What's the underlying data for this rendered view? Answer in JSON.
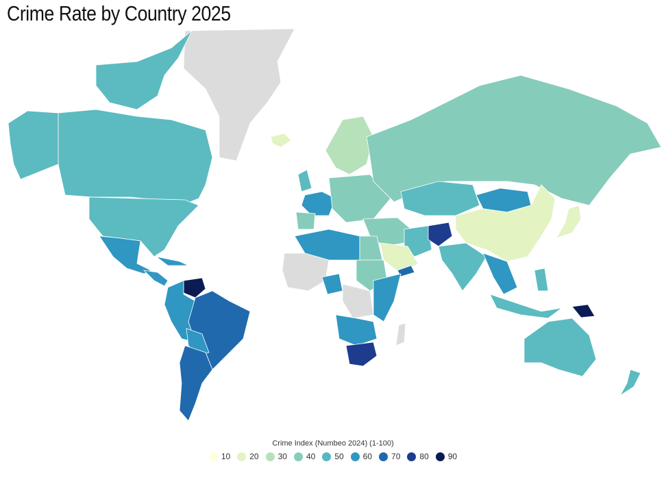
{
  "title": "Crime Rate by Country 2025",
  "legend": {
    "title": "Crime Index (Numbeo 2024) (1-100)",
    "items": [
      {
        "label": "10",
        "color": "#ffffd9"
      },
      {
        "label": "20",
        "color": "#e3f3c1"
      },
      {
        "label": "30",
        "color": "#b6e1b9"
      },
      {
        "label": "40",
        "color": "#86ccbb"
      },
      {
        "label": "50",
        "color": "#55b7c2"
      },
      {
        "label": "60",
        "color": "#2f97c2"
      },
      {
        "label": "70",
        "color": "#2069ad"
      },
      {
        "label": "80",
        "color": "#1e3c8d"
      },
      {
        "label": "90",
        "color": "#0b1c55"
      }
    ]
  },
  "colors": {
    "nodata": "#dcdcdc",
    "c20": "#e3f3c1",
    "c30": "#b6e1b9",
    "c40": "#86ccbb",
    "c50": "#5bbbc0",
    "c60": "#2f97c2",
    "c70": "#2069ad",
    "c80": "#1e3c8d",
    "c90": "#0b1c55"
  }
}
